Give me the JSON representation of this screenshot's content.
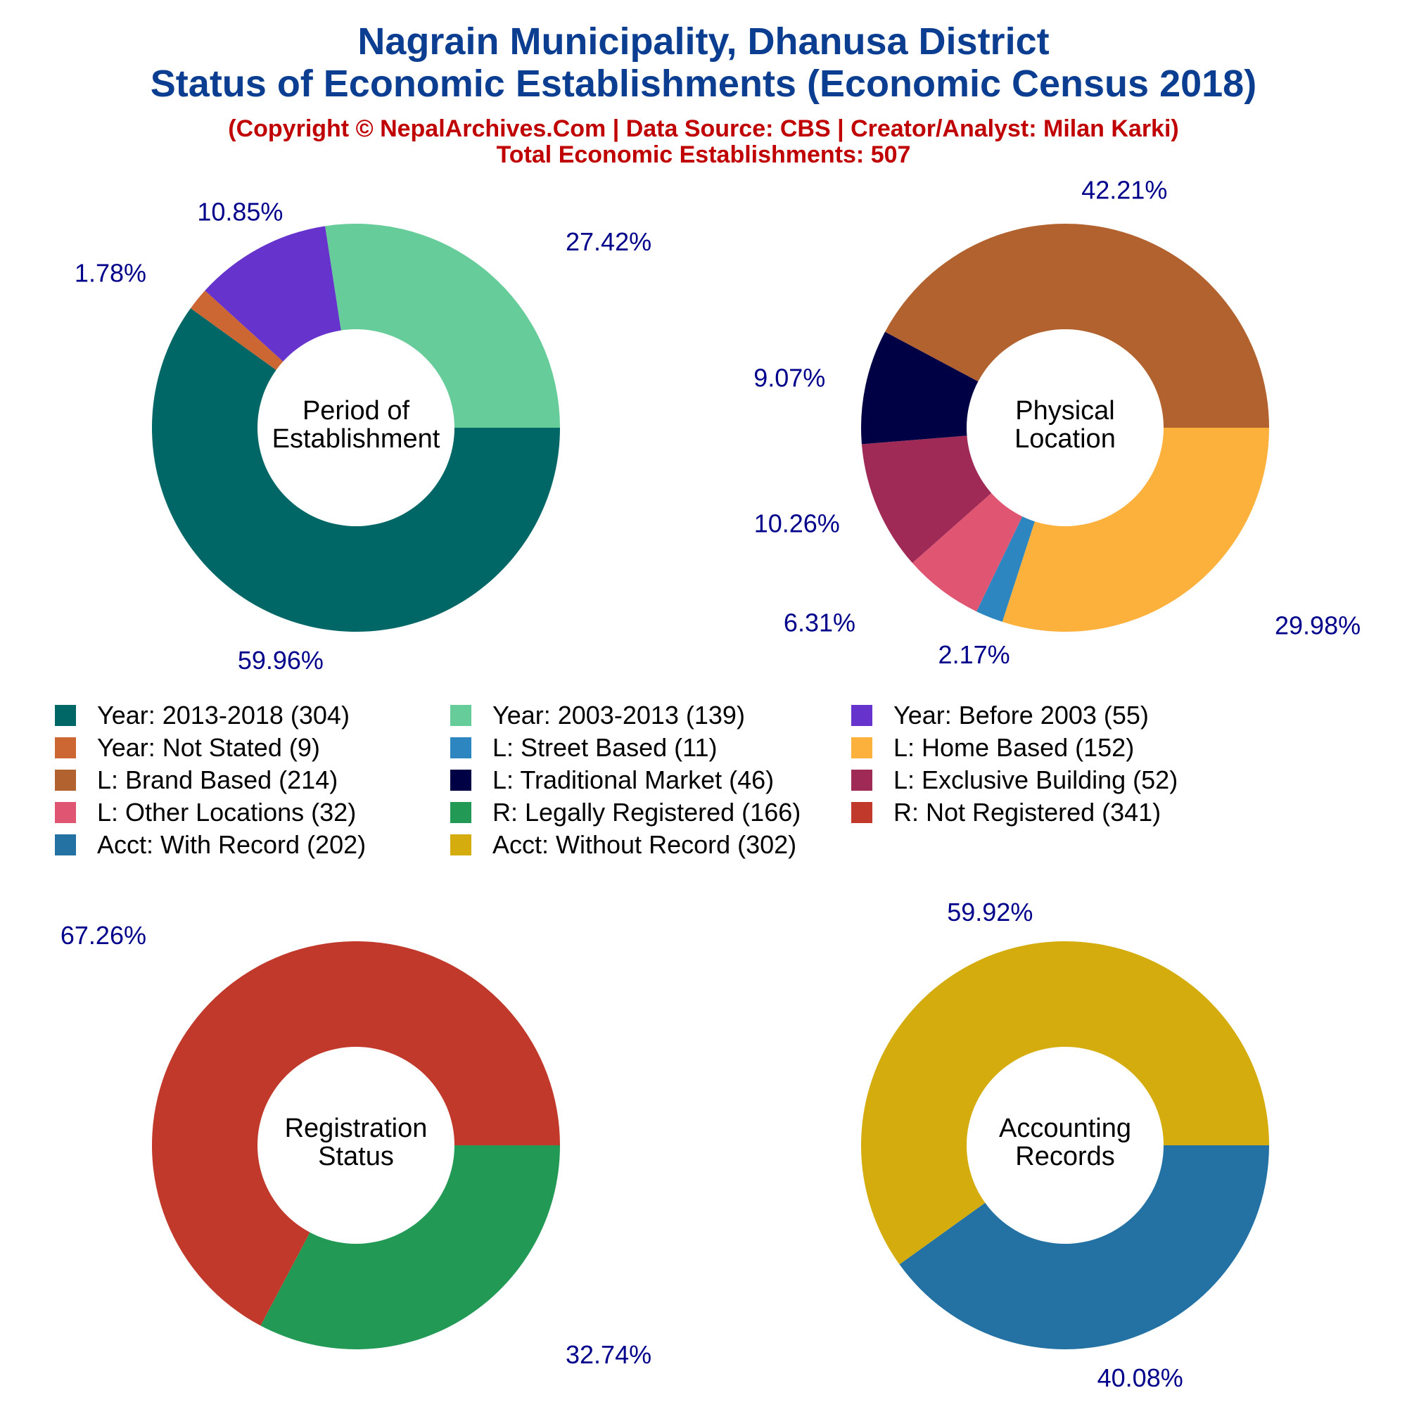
{
  "header": {
    "title_line1": "Nagrain Municipality, Dhanusa District",
    "title_line2": "Status of Economic Establishments (Economic Census 2018)",
    "copyright": "(Copyright © NepalArchives.Com | Data Source: CBS | Creator/Analyst: Milan Karki)",
    "total": "Total Economic Establishments: 507"
  },
  "legend": [
    {
      "label": "Year: 2013-2018 (304)",
      "color": "#006666"
    },
    {
      "label": "Year: 2003-2013 (139)",
      "color": "#66cc99"
    },
    {
      "label": "Year: Before 2003 (55)",
      "color": "#6633cc"
    },
    {
      "label": "Year: Not Stated (9)",
      "color": "#cc6633"
    },
    {
      "label": "L: Street Based (11)",
      "color": "#2e86c1"
    },
    {
      "label": "L: Home Based (152)",
      "color": "#fbb13c"
    },
    {
      "label": "L: Brand Based (214)",
      "color": "#b2622e"
    },
    {
      "label": "L: Traditional Market (46)",
      "color": "#000044"
    },
    {
      "label": "L: Exclusive Building (52)",
      "color": "#9e2a55"
    },
    {
      "label": "L: Other Locations (32)",
      "color": "#e05572"
    },
    {
      "label": "R: Legally Registered (166)",
      "color": "#229955"
    },
    {
      "label": "R: Not Registered (341)",
      "color": "#c0392b"
    },
    {
      "label": "Acct: With Record (202)",
      "color": "#2471a3"
    },
    {
      "label": "Acct: Without Record (302)",
      "color": "#d4ac0d"
    }
  ],
  "chart_data": [
    {
      "type": "pie",
      "center_label": [
        "Period of",
        "Establishment"
      ],
      "slices": [
        {
          "name": "Year: 2013-2018",
          "value": 304,
          "percent_label": "59.96%",
          "color": "#006666"
        },
        {
          "name": "Year: Not Stated",
          "value": 9,
          "percent_label": "1.78%",
          "color": "#cc6633"
        },
        {
          "name": "Year: Before 2003",
          "value": 55,
          "percent_label": "10.85%",
          "color": "#6633cc"
        },
        {
          "name": "Year: 2003-2013",
          "value": 139,
          "percent_label": "27.42%",
          "color": "#66cc99"
        }
      ]
    },
    {
      "type": "pie",
      "center_label": [
        "Physical",
        "Location"
      ],
      "slices": [
        {
          "name": "L: Home Based",
          "value": 152,
          "percent_label": "29.98%",
          "color": "#fbb13c"
        },
        {
          "name": "L: Street Based",
          "value": 11,
          "percent_label": "2.17%",
          "color": "#2e86c1"
        },
        {
          "name": "L: Other Locations",
          "value": 32,
          "percent_label": "6.31%",
          "color": "#e05572"
        },
        {
          "name": "L: Exclusive Building",
          "value": 52,
          "percent_label": "10.26%",
          "color": "#9e2a55"
        },
        {
          "name": "L: Traditional Market",
          "value": 46,
          "percent_label": "9.07%",
          "color": "#000044"
        },
        {
          "name": "L: Brand Based",
          "value": 214,
          "percent_label": "42.21%",
          "color": "#b2622e"
        }
      ]
    },
    {
      "type": "pie",
      "center_label": [
        "Registration",
        "Status"
      ],
      "slices": [
        {
          "name": "R: Legally Registered",
          "value": 166,
          "percent_label": "32.74%",
          "color": "#229955"
        },
        {
          "name": "R: Not Registered",
          "value": 341,
          "percent_label": "67.26%",
          "color": "#c0392b"
        }
      ]
    },
    {
      "type": "pie",
      "center_label": [
        "Accounting",
        "Records"
      ],
      "slices": [
        {
          "name": "Acct: With Record",
          "value": 202,
          "percent_label": "40.08%",
          "color": "#2471a3"
        },
        {
          "name": "Acct: Without Record",
          "value": 302,
          "percent_label": "59.92%",
          "color": "#d4ac0d"
        }
      ]
    }
  ]
}
